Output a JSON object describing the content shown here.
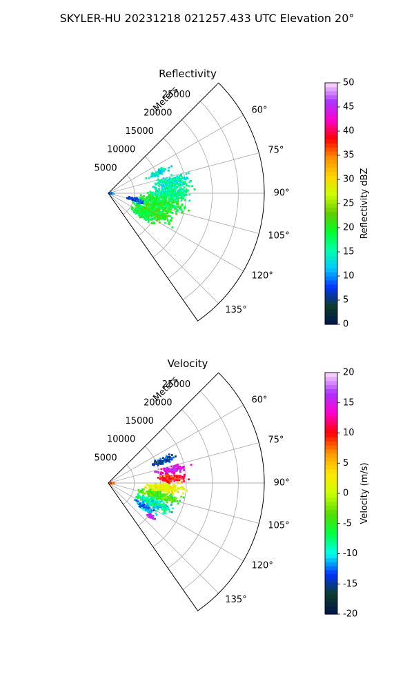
{
  "title": "SKYLER-HU  20231218  021257.433 UTC Elevation 20°",
  "chart_data": [
    {
      "type": "heatmap",
      "projection": "polar-sector",
      "title": "Reflectivity",
      "range_label": "Meters",
      "range_ticks": [
        5000,
        10000,
        15000,
        20000,
        25000
      ],
      "range_max": 30000,
      "azimuth_range": [
        45,
        145
      ],
      "azimuth_ticks": [
        "60°",
        "75°",
        "90°",
        "105°",
        "120°",
        "135°"
      ],
      "azimuth_tick_values": [
        60,
        75,
        90,
        105,
        120,
        135
      ],
      "grid": true,
      "colorbar": {
        "label": "Reflectivity dBZ",
        "min": 0,
        "max": 50,
        "ticks": [
          0,
          5,
          10,
          15,
          20,
          25,
          30,
          35,
          40,
          45,
          50
        ],
        "stops": [
          "#00154d",
          "#0c3d2a",
          "#0033ff",
          "#00c8ff",
          "#00ffaa",
          "#00ff2a",
          "#66cc00",
          "#ccff00",
          "#ffd400",
          "#ff8c00",
          "#ff0000",
          "#ff00cc",
          "#aa33ff",
          "#ffddff"
        ]
      },
      "echo_cells": [
        {
          "az": 68,
          "r": 10500,
          "daz": 4,
          "dr": 3000,
          "value": 14
        },
        {
          "az": 80,
          "r": 12500,
          "daz": 7,
          "dr": 4500,
          "value": 15
        },
        {
          "az": 90,
          "r": 12000,
          "daz": 8,
          "dr": 5500,
          "value": 16
        },
        {
          "az": 100,
          "r": 10500,
          "daz": 9,
          "dr": 6000,
          "value": 19
        },
        {
          "az": 112,
          "r": 9500,
          "daz": 10,
          "dr": 5000,
          "value": 20
        },
        {
          "az": 122,
          "r": 8000,
          "daz": 7,
          "dr": 3500,
          "value": 19
        },
        {
          "az": 104,
          "r": 5500,
          "daz": 6,
          "dr": 2000,
          "value": 8
        },
        {
          "az": 92,
          "r": 600,
          "daz": 10,
          "dr": 600,
          "value": 9
        }
      ]
    },
    {
      "type": "heatmap",
      "projection": "polar-sector",
      "title": "Velocity",
      "range_label": "Meters",
      "range_ticks": [
        5000,
        10000,
        15000,
        20000,
        25000
      ],
      "range_max": 30000,
      "azimuth_range": [
        45,
        145
      ],
      "azimuth_ticks": [
        "60°",
        "75°",
        "90°",
        "105°",
        "120°",
        "135°"
      ],
      "azimuth_tick_values": [
        60,
        75,
        90,
        105,
        120,
        135
      ],
      "grid": true,
      "colorbar": {
        "label": "Velocity (m/s)",
        "min": -20,
        "max": 20,
        "ticks": [
          -20,
          -15,
          -10,
          -5,
          0,
          5,
          10,
          15,
          20
        ],
        "stops": [
          "#00154d",
          "#0c3d2a",
          "#0033ff",
          "#00ffee",
          "#00ff44",
          "#55dd00",
          "#ccff00",
          "#ffe800",
          "#ff9900",
          "#ff0000",
          "#ff00cc",
          "#aa33ff",
          "#ffddff"
        ]
      },
      "echo_cells": [
        {
          "az": 68,
          "r": 11500,
          "daz": 4,
          "dr": 3000,
          "value": -14
        },
        {
          "az": 78,
          "r": 12500,
          "daz": 5,
          "dr": 4000,
          "value": 15
        },
        {
          "az": 86,
          "r": 12500,
          "daz": 5,
          "dr": 4000,
          "value": 10
        },
        {
          "az": 95,
          "r": 11000,
          "daz": 6,
          "dr": 5000,
          "value": 2
        },
        {
          "az": 104,
          "r": 10000,
          "daz": 6,
          "dr": 5500,
          "value": -4
        },
        {
          "az": 114,
          "r": 9500,
          "daz": 7,
          "dr": 5000,
          "value": -9
        },
        {
          "az": 124,
          "r": 8500,
          "daz": 5,
          "dr": 3000,
          "value": -12
        },
        {
          "az": 128,
          "r": 10500,
          "daz": 3,
          "dr": 1500,
          "value": 15
        },
        {
          "az": 92,
          "r": 600,
          "daz": 8,
          "dr": 600,
          "value": 8
        }
      ]
    }
  ]
}
